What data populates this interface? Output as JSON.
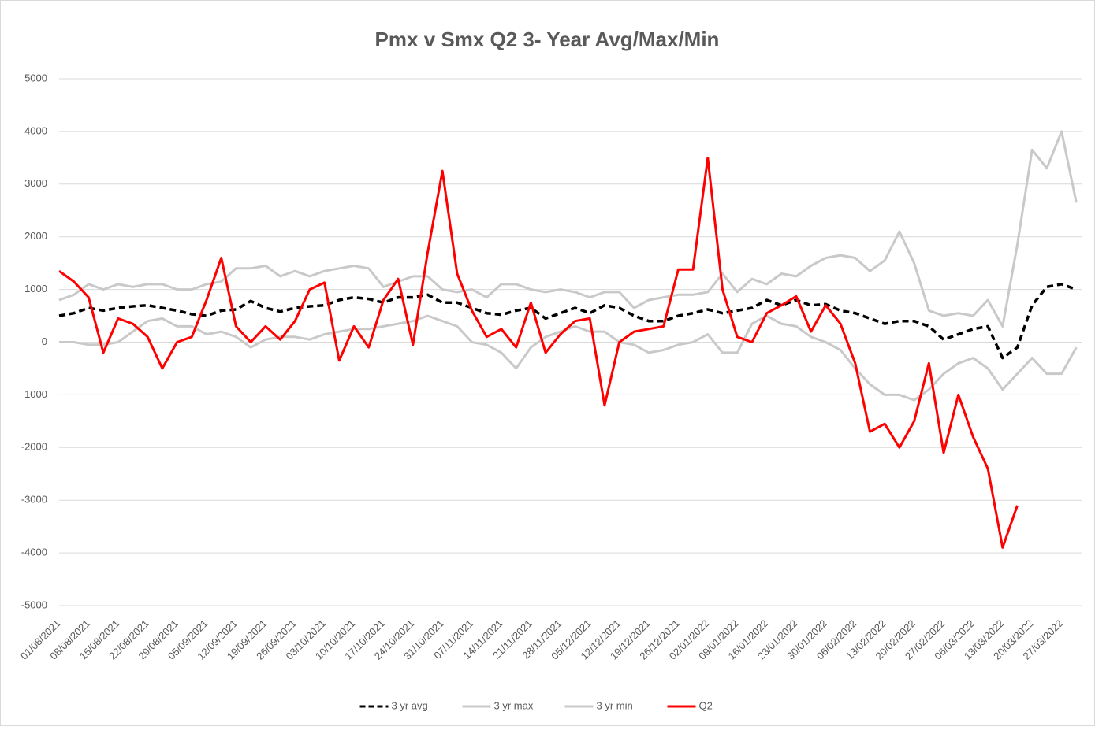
{
  "chart_data": {
    "type": "line",
    "title": "Pmx v Smx Q2  3- Year Avg/Max/Min",
    "categories": [
      "01/08/2021",
      null,
      "08/08/2021",
      null,
      "15/08/2021",
      null,
      "22/08/2021",
      null,
      "29/08/2021",
      null,
      "05/09/2021",
      null,
      "12/09/2021",
      null,
      "19/09/2021",
      null,
      "26/09/2021",
      null,
      "03/10/2021",
      null,
      "10/10/2021",
      null,
      "17/10/2021",
      null,
      "24/10/2021",
      null,
      "31/10/2021",
      null,
      "07/11/2021",
      null,
      "14/11/2021",
      null,
      "21/11/2021",
      null,
      "28/11/2021",
      null,
      "05/12/2021",
      null,
      "12/12/2021",
      null,
      "19/12/2021",
      null,
      "26/12/2021",
      null,
      "02/01/2022",
      null,
      "09/01/2022",
      null,
      "16/01/2022",
      null,
      "23/01/2022",
      null,
      "30/01/2022",
      null,
      "06/02/2022",
      null,
      "13/02/2022",
      null,
      "20/02/2022",
      null,
      "27/02/2022",
      null,
      "06/03/2022",
      null,
      "13/03/2022",
      null,
      "20/03/2022",
      null,
      "27/03/2022",
      null
    ],
    "series": [
      {
        "name": "3 yr avg",
        "color": "#000000",
        "style": "dashed",
        "values": [
          500,
          550,
          650,
          600,
          650,
          680,
          700,
          650,
          600,
          530,
          500,
          600,
          620,
          780,
          650,
          580,
          650,
          680,
          700,
          800,
          850,
          820,
          750,
          850,
          850,
          900,
          750,
          750,
          650,
          550,
          520,
          600,
          650,
          450,
          550,
          650,
          550,
          700,
          650,
          500,
          400,
          400,
          500,
          550,
          620,
          550,
          600,
          650,
          800,
          700,
          800,
          700,
          720,
          600,
          550,
          450,
          350,
          400,
          400,
          300,
          50,
          150,
          250,
          300,
          -300,
          -100,
          700,
          1050,
          1100,
          1000
        ]
      },
      {
        "name": "3 yr max",
        "color": "#c9c9c9",
        "style": "solid",
        "values": [
          800,
          900,
          1100,
          1000,
          1100,
          1050,
          1100,
          1100,
          1000,
          1000,
          1100,
          1150,
          1400,
          1400,
          1450,
          1250,
          1350,
          1250,
          1350,
          1400,
          1450,
          1400,
          1050,
          1150,
          1250,
          1250,
          1000,
          950,
          1000,
          850,
          1100,
          1100,
          1000,
          950,
          1000,
          950,
          850,
          950,
          950,
          650,
          800,
          850,
          900,
          900,
          950,
          1300,
          950,
          1200,
          1100,
          1300,
          1250,
          1450,
          1600,
          1650,
          1600,
          1350,
          1550,
          2100,
          1500,
          600,
          500,
          550,
          500,
          800,
          300,
          1850,
          3650,
          3300,
          4000,
          2650
        ]
      },
      {
        "name": "3 yr min",
        "color": "#c9c9c9",
        "style": "solid",
        "values": [
          0,
          0,
          -50,
          -50,
          0,
          200,
          400,
          450,
          300,
          300,
          150,
          200,
          100,
          -100,
          50,
          100,
          100,
          50,
          150,
          200,
          250,
          250,
          300,
          350,
          400,
          500,
          400,
          300,
          0,
          -50,
          -200,
          -500,
          -100,
          100,
          200,
          300,
          200,
          200,
          0,
          -50,
          -200,
          -150,
          -50,
          0,
          150,
          -200,
          -200,
          350,
          500,
          350,
          300,
          100,
          0,
          -150,
          -500,
          -800,
          -1000,
          -1000,
          -1100,
          -900,
          -600,
          -400,
          -300,
          -500,
          -900,
          -600,
          -300,
          -600,
          -600,
          -100
        ]
      },
      {
        "name": "Q2",
        "color": "#ff0000",
        "style": "solid",
        "values": [
          1350,
          1150,
          850,
          -200,
          450,
          350,
          100,
          -500,
          0,
          100,
          800,
          1600,
          300,
          0,
          300,
          50,
          400,
          1000,
          1130,
          -350,
          300,
          -100,
          800,
          1200,
          -50,
          1700,
          3250,
          1300,
          600,
          100,
          250,
          -100,
          750,
          -200,
          150,
          400,
          450,
          -1200,
          0,
          200,
          250,
          300,
          1380,
          1380,
          3500,
          1000,
          100,
          0,
          550,
          700,
          870,
          200,
          700,
          350,
          -400,
          -1700,
          -1550,
          -2000,
          -1500,
          -400,
          -2100,
          -1000,
          -1800,
          -2400,
          -3900,
          -3100,
          null,
          null,
          null,
          null
        ]
      }
    ],
    "ylim": [
      -5000,
      5000
    ],
    "yticks": [
      -5000,
      -4000,
      -3000,
      -2000,
      -1000,
      0,
      1000,
      2000,
      3000,
      4000,
      5000
    ],
    "grid": true,
    "legend": "bottom"
  }
}
